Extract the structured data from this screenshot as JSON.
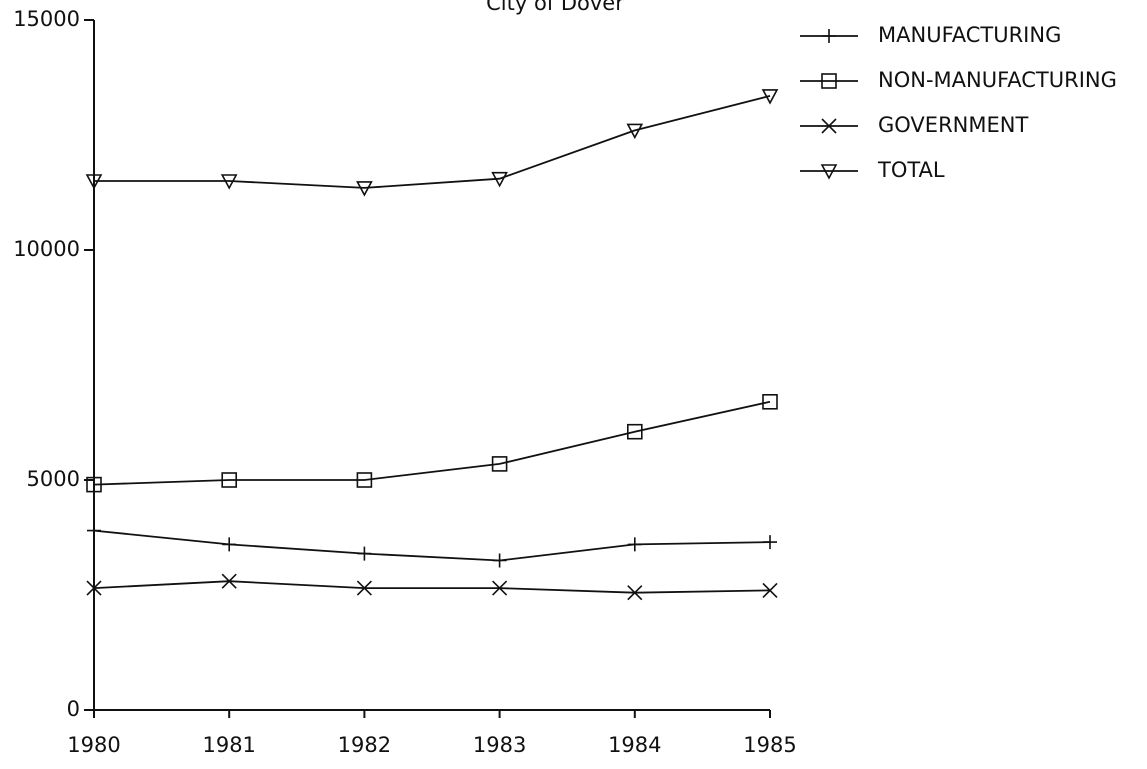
{
  "chart_data": {
    "type": "line",
    "title": "City of Dover",
    "categories": [
      "1980",
      "1981",
      "1982",
      "1983",
      "1984",
      "1985"
    ],
    "series": [
      {
        "name": "MANUFACTURING",
        "color": "#111111",
        "marker": "plus",
        "values": [
          3900,
          3600,
          3400,
          3250,
          3600,
          3650
        ]
      },
      {
        "name": "NON-MANUFACTURING",
        "color": "#111111",
        "marker": "square",
        "values": [
          4900,
          5000,
          5000,
          5350,
          6050,
          6700
        ]
      },
      {
        "name": "GOVERNMENT",
        "color": "#111111",
        "marker": "cross",
        "values": [
          2650,
          2800,
          2650,
          2650,
          2550,
          2600
        ]
      },
      {
        "name": "TOTAL",
        "color": "#111111",
        "marker": "triangle-down",
        "values": [
          11500,
          11500,
          11350,
          11550,
          12600,
          13350
        ]
      }
    ],
    "ylim": [
      0,
      15000
    ],
    "yticks": [
      0,
      5000,
      10000,
      15000
    ],
    "legend": "top-right",
    "grid": false
  }
}
